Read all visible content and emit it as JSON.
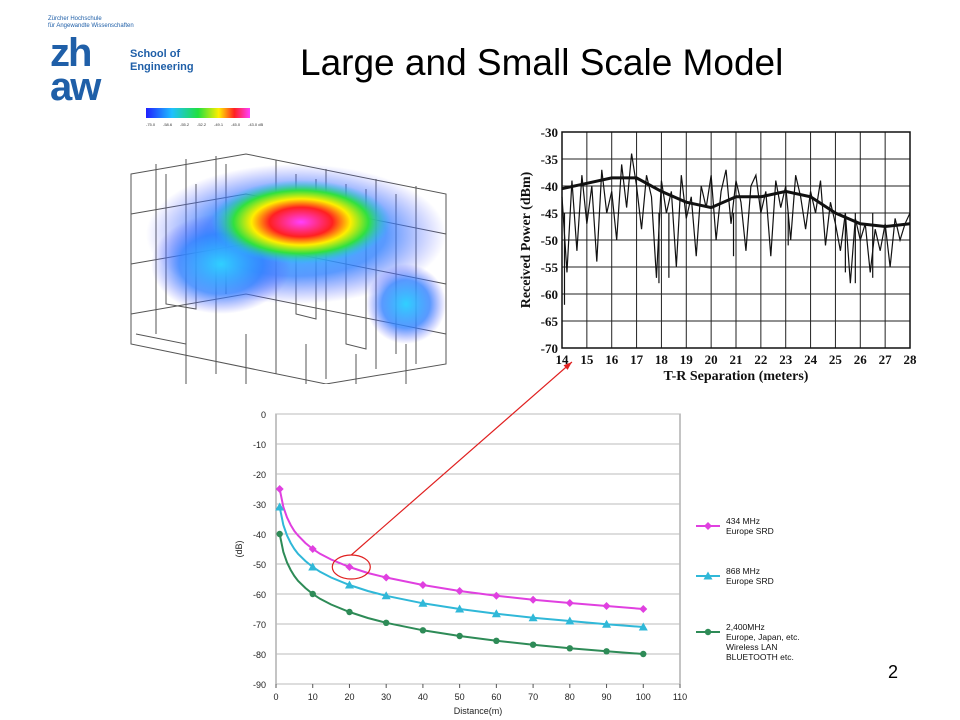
{
  "slide": {
    "title": "Large and Small Scale Model",
    "page_number": "2"
  },
  "logo": {
    "institution_line1": "Zürcher Hochschule",
    "institution_line2": "für Angewandte Wissenschaften",
    "letters_top": "zh",
    "letters_bottom": "aw",
    "school_line1": "School of",
    "school_line2": "Engineering",
    "brand_color": "#1f5fa8"
  },
  "heatmap": {
    "colorbar_labels": [
      "-75.0",
      "-58.6",
      "-55.2",
      "-52.2",
      "-49.1",
      "-45.0",
      "-43.0 dB"
    ]
  },
  "arrow_color": "#e02020",
  "chart_data": [
    {
      "type": "line",
      "xlabel": "T-R Separation (meters)",
      "ylabel": "Received Power (dBm)",
      "xlim": [
        14,
        28
      ],
      "ylim": [
        -70,
        -30
      ],
      "x_ticks": [
        "14",
        "15",
        "16",
        "17",
        "18",
        "19",
        "20",
        "21",
        "22",
        "23",
        "24",
        "25",
        "26",
        "27",
        "28"
      ],
      "y_ticks": [
        "-30",
        "-35",
        "-40",
        "-45",
        "-50",
        "-55",
        "-60",
        "-65",
        "-70"
      ],
      "grid": true,
      "series": [
        {
          "style": "fast-fading",
          "x": [
            14.0,
            14.2,
            14.4,
            14.6,
            14.8,
            15.0,
            15.2,
            15.4,
            15.6,
            15.8,
            16.0,
            16.2,
            16.4,
            16.6,
            16.8,
            17.0,
            17.2,
            17.4,
            17.6,
            17.8,
            18.0,
            18.2,
            18.4,
            18.6,
            18.8,
            19.0,
            19.2,
            19.4,
            19.6,
            19.8,
            20.0,
            20.2,
            20.4,
            20.6,
            20.8,
            21.0,
            21.2,
            21.4,
            21.6,
            21.8,
            22.0,
            22.2,
            22.4,
            22.6,
            22.8,
            23.0,
            23.2,
            23.4,
            23.6,
            23.8,
            24.0,
            24.2,
            24.4,
            24.6,
            24.8,
            25.0,
            25.2,
            25.4,
            25.6,
            25.8,
            26.0,
            26.2,
            26.4,
            26.6,
            26.8,
            27.0,
            27.2,
            27.4,
            27.6,
            27.8,
            28.0
          ],
          "values": [
            -42,
            -56,
            -39,
            -52,
            -38,
            -47,
            -40,
            -54,
            -37,
            -45,
            -41,
            -50,
            -36,
            -44,
            -34,
            -40,
            -48,
            -38,
            -42,
            -57,
            -39,
            -45,
            -41,
            -55,
            -38,
            -46,
            -42,
            -53,
            -40,
            -44,
            -38,
            -50,
            -41,
            -37,
            -47,
            -39,
            -43,
            -52,
            -40,
            -38,
            -45,
            -41,
            -53,
            -39,
            -44,
            -40,
            -50,
            -38,
            -42,
            -48,
            -41,
            -45,
            -39,
            -51,
            -43,
            -47,
            -52,
            -45,
            -58,
            -46,
            -50,
            -47,
            -56,
            -48,
            -52,
            -47,
            -55,
            -46,
            -50,
            -47,
            -45
          ],
          "min_dips": [
            {
              "x": 14.1,
              "y": -62
            },
            {
              "x": 17.9,
              "y": -58
            },
            {
              "x": 18.3,
              "y": -57
            },
            {
              "x": 20.9,
              "y": -53
            },
            {
              "x": 23.1,
              "y": -51
            },
            {
              "x": 25.4,
              "y": -56
            },
            {
              "x": 25.8,
              "y": -58
            },
            {
              "x": 26.5,
              "y": -57
            }
          ]
        },
        {
          "style": "local-mean",
          "x": [
            14,
            15,
            16,
            17,
            18,
            19,
            20,
            21,
            22,
            23,
            24,
            25,
            26,
            27,
            28
          ],
          "values": [
            -40.5,
            -39.5,
            -38.5,
            -38.5,
            -41,
            -43,
            -44,
            -42,
            -42,
            -41,
            -42,
            -45,
            -47,
            -47.5,
            -47
          ]
        }
      ]
    },
    {
      "type": "line",
      "xlabel": "Distance(m)",
      "ylabel": "(dB)",
      "xlim": [
        0,
        110
      ],
      "ylim": [
        -90,
        0
      ],
      "x_ticks": [
        "0",
        "10",
        "20",
        "30",
        "40",
        "50",
        "60",
        "70",
        "80",
        "90",
        "100",
        "110"
      ],
      "y_ticks": [
        "0",
        "-10",
        "-20",
        "-30",
        "-40",
        "-50",
        "-60",
        "-70",
        "-80",
        "-90"
      ],
      "grid": true,
      "categories_x": [
        1,
        10,
        20,
        30,
        40,
        50,
        60,
        70,
        80,
        90,
        100
      ],
      "series": [
        {
          "name": "434 MHz",
          "name_line2": "Europe SRD",
          "color": "#e040e0",
          "marker": "diamond",
          "x": [
            1,
            2,
            3,
            4,
            5,
            6,
            8,
            10,
            12,
            15,
            20,
            25,
            30,
            40,
            50,
            60,
            70,
            80,
            90,
            100
          ],
          "values": [
            -25,
            -31,
            -34.5,
            -37,
            -39,
            -40.5,
            -43,
            -45,
            -46.6,
            -48.5,
            -51,
            -53,
            -54.5,
            -57,
            -59,
            -60.6,
            -61.9,
            -63,
            -64,
            -65
          ]
        },
        {
          "name": "868 MHz",
          "name_line2": "Europe SRD",
          "color": "#30b8d8",
          "marker": "triangle",
          "x": [
            1,
            2,
            3,
            4,
            5,
            6,
            8,
            10,
            12,
            15,
            20,
            25,
            30,
            40,
            50,
            60,
            70,
            80,
            90,
            100
          ],
          "values": [
            -31,
            -37,
            -40.5,
            -43,
            -45,
            -46.6,
            -49,
            -51,
            -52.6,
            -54.5,
            -57,
            -59,
            -60.6,
            -63.1,
            -65,
            -66.6,
            -67.9,
            -69,
            -70.1,
            -71
          ]
        },
        {
          "name": "2,400MHz",
          "name_line2": "Europe, Japan, etc.",
          "name_line3": "Wireless LAN",
          "name_line4": "BLUETOOTH etc.",
          "color": "#2e8b57",
          "marker": "circle",
          "x": [
            1,
            2,
            3,
            4,
            5,
            6,
            8,
            10,
            12,
            15,
            20,
            25,
            30,
            40,
            50,
            60,
            70,
            80,
            90,
            100
          ],
          "values": [
            -40,
            -46,
            -49.5,
            -52,
            -54,
            -55.6,
            -58,
            -60,
            -61.6,
            -63.5,
            -66,
            -68,
            -69.6,
            -72.1,
            -74,
            -75.6,
            -76.9,
            -78.1,
            -79.1,
            -80
          ]
        }
      ],
      "marker_points_x": [
        1,
        10,
        20,
        30,
        40,
        50,
        60,
        70,
        80,
        90,
        100
      ]
    }
  ]
}
